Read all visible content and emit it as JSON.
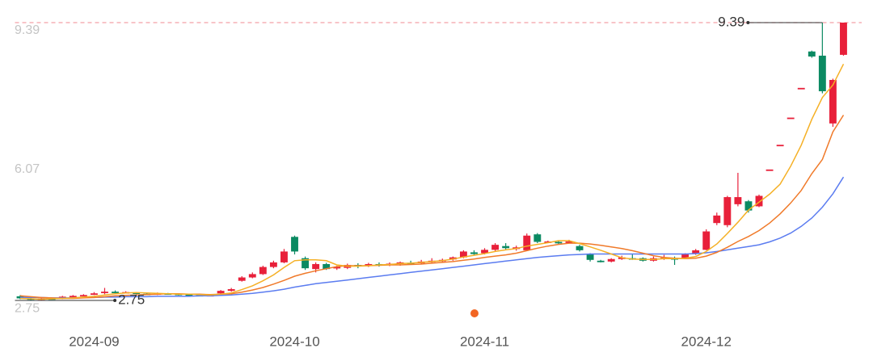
{
  "chart_data": {
    "type": "candlestick",
    "up_color": "#e8203a",
    "down_color": "#0b8a62",
    "ylim": [
      2.5,
      9.39
    ],
    "yticks": [
      2.75,
      6.07,
      9.39
    ],
    "categories": [
      null,
      null,
      null,
      null,
      null,
      null,
      null,
      "2024-09",
      null,
      null,
      null,
      null,
      null,
      null,
      null,
      null,
      null,
      null,
      null,
      null,
      null,
      null,
      null,
      null,
      null,
      null,
      "2024-10",
      null,
      null,
      null,
      null,
      null,
      null,
      null,
      null,
      null,
      null,
      null,
      null,
      null,
      null,
      null,
      null,
      null,
      "2024-11",
      null,
      null,
      null,
      null,
      null,
      null,
      null,
      null,
      null,
      null,
      null,
      null,
      null,
      null,
      null,
      null,
      null,
      null,
      null,
      null,
      "2024-12",
      null,
      null,
      null,
      null,
      null,
      null,
      null,
      null,
      null,
      null,
      null,
      null,
      null
    ],
    "candles": [
      [
        2.85,
        2.8,
        2.78,
        2.88
      ],
      [
        2.8,
        2.78,
        2.75,
        2.82
      ],
      [
        2.78,
        2.8,
        2.76,
        2.83
      ],
      [
        2.8,
        2.79,
        2.77,
        2.82
      ],
      [
        2.79,
        2.84,
        2.78,
        2.86
      ],
      [
        2.85,
        2.86,
        2.83,
        2.88
      ],
      [
        2.86,
        2.88,
        2.85,
        2.9
      ],
      [
        2.9,
        2.92,
        2.88,
        2.95
      ],
      [
        2.93,
        2.96,
        2.9,
        3.05
      ],
      [
        2.96,
        2.94,
        2.92,
        2.99
      ],
      [
        2.94,
        2.95,
        2.92,
        2.97
      ],
      [
        2.94,
        2.91,
        2.9,
        2.95
      ],
      [
        2.91,
        2.9,
        2.88,
        2.93
      ],
      [
        2.9,
        2.92,
        2.88,
        2.94
      ],
      [
        2.92,
        2.91,
        2.89,
        2.93
      ],
      [
        2.91,
        2.89,
        2.87,
        2.92
      ],
      [
        2.89,
        2.88,
        2.86,
        2.91
      ],
      [
        2.88,
        2.87,
        2.85,
        2.9
      ],
      [
        2.87,
        2.88,
        2.85,
        2.9
      ],
      [
        2.92,
        2.98,
        2.9,
        3.0
      ],
      [
        2.98,
        3.02,
        2.96,
        3.05
      ],
      [
        3.22,
        3.3,
        3.2,
        3.33
      ],
      [
        3.3,
        3.38,
        3.28,
        3.42
      ],
      [
        3.38,
        3.55,
        3.36,
        3.58
      ],
      [
        3.55,
        3.66,
        3.52,
        3.7
      ],
      [
        3.66,
        3.92,
        3.64,
        3.98
      ],
      [
        4.27,
        3.92,
        3.85,
        4.3
      ],
      [
        3.76,
        3.52,
        3.48,
        3.8
      ],
      [
        3.5,
        3.62,
        3.42,
        3.66
      ],
      [
        3.62,
        3.5,
        3.48,
        3.65
      ],
      [
        3.52,
        3.55,
        3.48,
        3.58
      ],
      [
        3.53,
        3.6,
        3.5,
        3.63
      ],
      [
        3.6,
        3.58,
        3.52,
        3.64
      ],
      [
        3.58,
        3.62,
        3.55,
        3.65
      ],
      [
        3.62,
        3.6,
        3.56,
        3.66
      ],
      [
        3.6,
        3.63,
        3.57,
        3.66
      ],
      [
        3.62,
        3.66,
        3.58,
        3.68
      ],
      [
        3.65,
        3.63,
        3.6,
        3.7
      ],
      [
        3.64,
        3.68,
        3.62,
        3.72
      ],
      [
        3.67,
        3.7,
        3.63,
        3.76
      ],
      [
        3.7,
        3.72,
        3.66,
        3.75
      ],
      [
        3.73,
        3.78,
        3.7,
        3.8
      ],
      [
        3.78,
        3.92,
        3.76,
        3.95
      ],
      [
        3.9,
        3.86,
        3.83,
        3.95
      ],
      [
        3.88,
        3.96,
        3.85,
        4.0
      ],
      [
        3.96,
        4.08,
        3.92,
        4.12
      ],
      [
        4.05,
        4.0,
        3.95,
        4.12
      ],
      [
        3.98,
        4.02,
        3.94,
        4.06
      ],
      [
        3.95,
        4.3,
        3.93,
        4.35
      ],
      [
        4.33,
        4.15,
        4.12,
        4.36
      ],
      [
        4.14,
        4.16,
        4.12,
        4.18
      ],
      [
        4.15,
        4.13,
        4.1,
        4.17
      ],
      [
        4.13,
        4.16,
        4.11,
        4.2
      ],
      [
        4.05,
        3.95,
        3.92,
        4.08
      ],
      [
        3.85,
        3.72,
        3.68,
        3.88
      ],
      [
        3.7,
        3.68,
        3.66,
        3.72
      ],
      [
        3.68,
        3.74,
        3.66,
        3.76
      ],
      [
        3.74,
        3.78,
        3.72,
        3.82
      ],
      [
        3.76,
        3.75,
        3.72,
        3.85
      ],
      [
        3.76,
        3.7,
        3.68,
        3.78
      ],
      [
        3.7,
        3.76,
        3.68,
        3.8
      ],
      [
        3.75,
        3.77,
        3.72,
        3.84
      ],
      [
        3.76,
        3.75,
        3.6,
        3.8
      ],
      [
        3.76,
        3.85,
        3.74,
        3.88
      ],
      [
        3.86,
        3.95,
        3.84,
        3.98
      ],
      [
        3.96,
        4.4,
        3.95,
        4.45
      ],
      [
        4.6,
        4.78,
        4.55,
        4.85
      ],
      [
        4.55,
        5.22,
        4.5,
        5.25
      ],
      [
        5.05,
        5.22,
        5.0,
        5.8
      ],
      [
        5.12,
        4.9,
        4.85,
        5.15
      ],
      [
        5.0,
        5.25,
        4.98,
        5.28
      ],
      [
        5.88,
        5.88,
        5.88,
        5.88
      ],
      [
        6.47,
        6.47,
        6.47,
        6.47
      ],
      [
        7.12,
        7.12,
        7.12,
        7.12
      ],
      [
        7.83,
        7.83,
        7.83,
        7.83
      ],
      [
        8.7,
        8.58,
        8.55,
        8.72
      ],
      [
        8.6,
        7.75,
        7.7,
        9.39
      ],
      [
        6.98,
        8.02,
        6.9,
        8.05
      ],
      [
        8.62,
        9.39,
        8.6,
        9.39
      ]
    ],
    "moving_averages": [
      {
        "color": "#5b7cf0",
        "values": [
          2.82,
          2.82,
          2.82,
          2.81,
          2.81,
          2.81,
          2.82,
          2.82,
          2.83,
          2.83,
          2.84,
          2.84,
          2.84,
          2.85,
          2.85,
          2.85,
          2.85,
          2.86,
          2.86,
          2.87,
          2.88,
          2.9,
          2.92,
          2.95,
          2.98,
          3.02,
          3.07,
          3.11,
          3.15,
          3.18,
          3.21,
          3.24,
          3.27,
          3.3,
          3.33,
          3.36,
          3.39,
          3.42,
          3.45,
          3.48,
          3.51,
          3.54,
          3.57,
          3.6,
          3.63,
          3.66,
          3.69,
          3.72,
          3.75,
          3.78,
          3.8,
          3.82,
          3.84,
          3.85,
          3.86,
          3.86,
          3.86,
          3.86,
          3.86,
          3.86,
          3.86,
          3.86,
          3.86,
          3.86,
          3.87,
          3.89,
          3.92,
          3.96,
          4.0,
          4.04,
          4.08,
          4.15,
          4.24,
          4.36,
          4.52,
          4.72,
          4.98,
          5.3,
          5.7
        ]
      },
      {
        "color": "#f07a2a",
        "values": [
          2.86,
          2.84,
          2.82,
          2.81,
          2.8,
          2.8,
          2.81,
          2.82,
          2.84,
          2.86,
          2.87,
          2.88,
          2.89,
          2.9,
          2.91,
          2.91,
          2.9,
          2.9,
          2.89,
          2.9,
          2.91,
          2.95,
          3.0,
          3.06,
          3.14,
          3.23,
          3.33,
          3.4,
          3.46,
          3.51,
          3.56,
          3.58,
          3.58,
          3.58,
          3.59,
          3.6,
          3.6,
          3.61,
          3.62,
          3.64,
          3.66,
          3.68,
          3.71,
          3.74,
          3.78,
          3.81,
          3.84,
          3.88,
          3.94,
          4.0,
          4.05,
          4.09,
          4.12,
          4.12,
          4.1,
          4.07,
          4.03,
          3.99,
          3.94,
          3.88,
          3.82,
          3.78,
          3.76,
          3.75,
          3.76,
          3.81,
          3.9,
          4.02,
          4.16,
          4.28,
          4.42,
          4.6,
          4.82,
          5.08,
          5.38,
          5.78,
          6.12,
          6.78,
          7.18
        ]
      },
      {
        "color": "#f5b025",
        "values": [
          2.8,
          2.79,
          2.78,
          2.79,
          2.8,
          2.81,
          2.83,
          2.85,
          2.88,
          2.91,
          2.93,
          2.94,
          2.93,
          2.92,
          2.91,
          2.9,
          2.9,
          2.89,
          2.88,
          2.9,
          2.93,
          3.01,
          3.1,
          3.22,
          3.36,
          3.54,
          3.7,
          3.72,
          3.72,
          3.7,
          3.6,
          3.57,
          3.57,
          3.58,
          3.6,
          3.61,
          3.63,
          3.64,
          3.66,
          3.68,
          3.7,
          3.74,
          3.79,
          3.83,
          3.87,
          3.92,
          3.96,
          3.99,
          4.05,
          4.09,
          4.13,
          4.18,
          4.18,
          4.11,
          4.03,
          3.95,
          3.86,
          3.77,
          3.74,
          3.73,
          3.73,
          3.75,
          3.75,
          3.76,
          3.8,
          3.92,
          4.1,
          4.35,
          4.62,
          4.91,
          5.1,
          5.29,
          5.53,
          5.96,
          6.46,
          7.08,
          7.6,
          7.9,
          8.4
        ]
      }
    ],
    "max_marker": 9.39,
    "min_marker": 2.75,
    "max_line_color": "#f4a0a6"
  }
}
